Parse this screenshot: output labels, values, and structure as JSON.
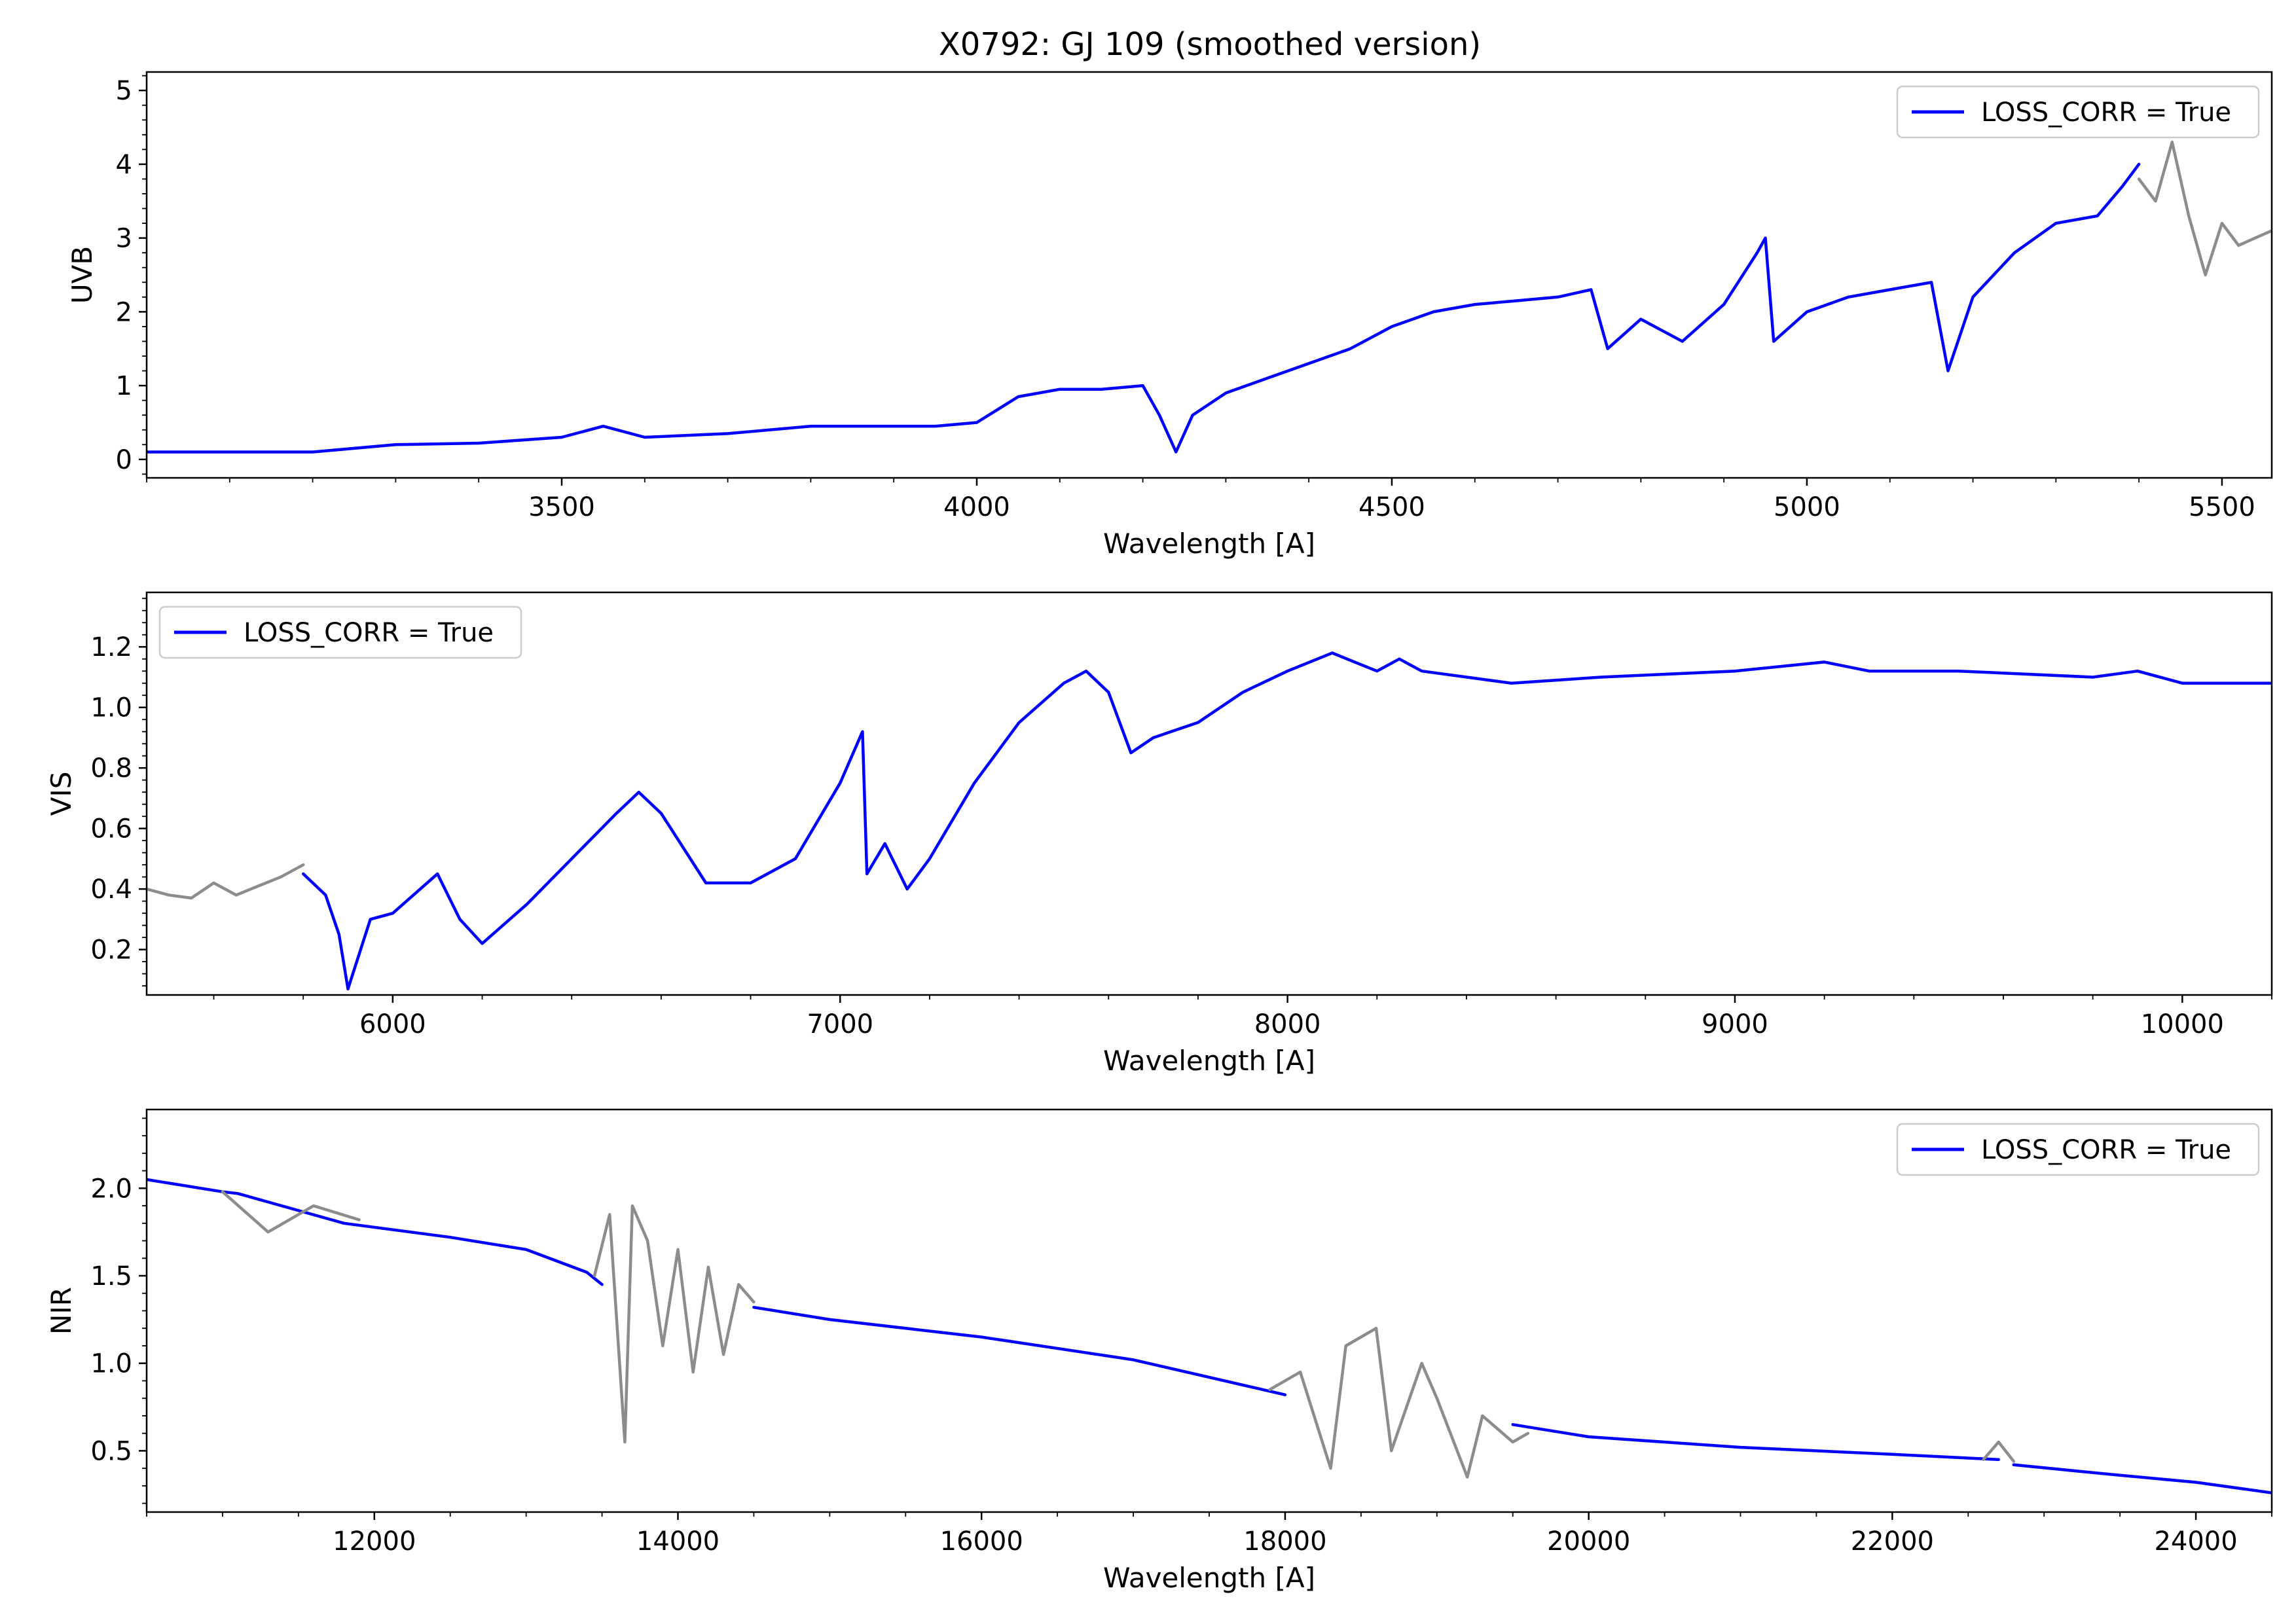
{
  "figure": {
    "title": "X0792: GJ 109 (smoothed version)"
  },
  "colors": {
    "main": "#0000ff",
    "masked": "#8c8c8c",
    "axis": "#000000",
    "legend_border": "#cccccc"
  },
  "chart_data": [
    {
      "type": "line",
      "xlabel": "Wavelength [A]",
      "ylabel": "UVB",
      "xlim": [
        3000,
        5560
      ],
      "ylim": [
        -0.25,
        5.25
      ],
      "xticks": [
        3500,
        4000,
        4500,
        5000,
        5500
      ],
      "xtick_labels": [
        "3500",
        "4000",
        "4500",
        "5000",
        "5500"
      ],
      "yticks": [
        0,
        1,
        2,
        3,
        4,
        5
      ],
      "ytick_labels": [
        "0",
        "1",
        "2",
        "3",
        "4",
        "5"
      ],
      "legend": {
        "label": "LOSS_CORR = True",
        "placement": "upper right"
      },
      "series": [
        {
          "name": "LOSS_CORR = True",
          "color": "#0000ff",
          "x": [
            3000,
            3100,
            3200,
            3300,
            3400,
            3500,
            3550,
            3600,
            3700,
            3800,
            3900,
            3950,
            4000,
            4050,
            4100,
            4150,
            4200,
            4220,
            4240,
            4260,
            4300,
            4350,
            4400,
            4450,
            4500,
            4550,
            4600,
            4650,
            4700,
            4740,
            4760,
            4800,
            4850,
            4900,
            4940,
            4950,
            4960,
            5000,
            5050,
            5100,
            5150,
            5170,
            5200,
            5250,
            5300,
            5350,
            5380,
            5400
          ],
          "y": [
            0.1,
            0.1,
            0.1,
            0.2,
            0.22,
            0.3,
            0.45,
            0.3,
            0.35,
            0.45,
            0.45,
            0.45,
            0.5,
            0.85,
            0.95,
            0.95,
            1.0,
            0.6,
            0.1,
            0.6,
            0.9,
            1.1,
            1.3,
            1.5,
            1.8,
            2.0,
            2.1,
            2.15,
            2.2,
            2.3,
            1.5,
            1.9,
            1.6,
            2.1,
            2.8,
            3.0,
            1.6,
            2.0,
            2.2,
            2.3,
            2.4,
            1.2,
            2.2,
            2.8,
            3.2,
            3.3,
            3.7,
            4.0
          ]
        },
        {
          "name": "",
          "color": "#8c8c8c",
          "x": [
            5400,
            5420,
            5440,
            5460,
            5480,
            5500,
            5520,
            5540,
            5560
          ],
          "y": [
            3.8,
            3.5,
            4.3,
            3.3,
            2.5,
            3.2,
            2.9,
            3.0,
            3.1
          ]
        }
      ]
    },
    {
      "type": "line",
      "xlabel": "Wavelength [A]",
      "ylabel": "VIS",
      "xlim": [
        5450,
        10200
      ],
      "ylim": [
        0.05,
        1.38
      ],
      "xticks": [
        6000,
        7000,
        8000,
        9000,
        10000
      ],
      "xtick_labels": [
        "6000",
        "7000",
        "8000",
        "9000",
        "10000"
      ],
      "yticks": [
        0.2,
        0.4,
        0.6,
        0.8,
        1.0,
        1.2
      ],
      "ytick_labels": [
        "0.2",
        "0.4",
        "0.6",
        "0.8",
        "1.0",
        "1.2"
      ],
      "legend": {
        "label": "LOSS_CORR = True",
        "placement": "upper left"
      },
      "series": [
        {
          "name": "",
          "color": "#8c8c8c",
          "x": [
            5450,
            5500,
            5550,
            5600,
            5650,
            5700,
            5750,
            5800
          ],
          "y": [
            0.4,
            0.38,
            0.37,
            0.42,
            0.38,
            0.41,
            0.44,
            0.48
          ]
        },
        {
          "name": "LOSS_CORR = True",
          "color": "#0000ff",
          "x": [
            5800,
            5850,
            5880,
            5900,
            5950,
            6000,
            6100,
            6150,
            6200,
            6300,
            6400,
            6500,
            6550,
            6600,
            6700,
            6800,
            6900,
            7000,
            7050,
            7060,
            7100,
            7150,
            7200,
            7300,
            7400,
            7500,
            7550,
            7600,
            7650,
            7700,
            7800,
            7900,
            8000,
            8100,
            8150,
            8200,
            8250,
            8300,
            8500,
            8700,
            9000,
            9200,
            9300,
            9500,
            9800,
            9900,
            10000,
            10200
          ],
          "y": [
            0.45,
            0.38,
            0.25,
            0.07,
            0.3,
            0.32,
            0.45,
            0.3,
            0.22,
            0.35,
            0.5,
            0.65,
            0.72,
            0.65,
            0.42,
            0.42,
            0.5,
            0.75,
            0.92,
            0.45,
            0.55,
            0.4,
            0.5,
            0.75,
            0.95,
            1.08,
            1.12,
            1.05,
            0.85,
            0.9,
            0.95,
            1.05,
            1.12,
            1.18,
            1.15,
            1.12,
            1.16,
            1.12,
            1.08,
            1.1,
            1.12,
            1.15,
            1.12,
            1.12,
            1.1,
            1.12,
            1.08,
            1.08
          ]
        }
      ]
    },
    {
      "type": "line",
      "xlabel": "Wavelength [A]",
      "ylabel": "NIR",
      "xlim": [
        10500,
        24500
      ],
      "ylim": [
        0.15,
        2.45
      ],
      "xticks": [
        12000,
        14000,
        16000,
        18000,
        20000,
        22000,
        24000
      ],
      "xtick_labels": [
        "12000",
        "14000",
        "16000",
        "18000",
        "20000",
        "22000",
        "24000"
      ],
      "yticks": [
        0.5,
        1.0,
        1.5,
        2.0
      ],
      "ytick_labels": [
        "0.5",
        "1.0",
        "1.5",
        "2.0"
      ],
      "legend": {
        "label": "LOSS_CORR = True",
        "placement": "upper right"
      },
      "series": [
        {
          "name": "LOSS_CORR = True",
          "color": "#0000ff",
          "x": [
            10500,
            11000,
            11100,
            11800,
            12500,
            13000,
            13400,
            13500
          ],
          "y": [
            2.05,
            1.98,
            1.97,
            1.8,
            1.72,
            1.65,
            1.52,
            1.45
          ]
        },
        {
          "name": "",
          "color": "#8c8c8c",
          "x": [
            11000,
            11300,
            11600,
            11900
          ],
          "y": [
            1.98,
            1.75,
            1.9,
            1.82
          ]
        },
        {
          "name": "",
          "color": "#8c8c8c",
          "x": [
            13450,
            13550,
            13650,
            13700,
            13800,
            13900,
            14000,
            14100,
            14200,
            14300,
            14400,
            14500
          ],
          "y": [
            1.5,
            1.85,
            0.55,
            1.9,
            1.7,
            1.1,
            1.65,
            0.95,
            1.55,
            1.05,
            1.45,
            1.35
          ]
        },
        {
          "name": "LOSS_CORR = True",
          "color": "#0000ff",
          "x": [
            14500,
            15000,
            16000,
            17000,
            18000
          ],
          "y": [
            1.32,
            1.25,
            1.15,
            1.02,
            0.82
          ]
        },
        {
          "name": "",
          "color": "#8c8c8c",
          "x": [
            17900,
            18100,
            18300,
            18400,
            18600,
            18700,
            18900,
            19000,
            19200,
            19300,
            19500,
            19600
          ],
          "y": [
            0.85,
            0.95,
            0.4,
            1.1,
            1.2,
            0.5,
            1.0,
            0.8,
            0.35,
            0.7,
            0.55,
            0.6
          ]
        },
        {
          "name": "LOSS_CORR = True",
          "color": "#0000ff",
          "x": [
            19500,
            20000,
            21000,
            22000,
            22700
          ],
          "y": [
            0.65,
            0.58,
            0.52,
            0.48,
            0.45
          ]
        },
        {
          "name": "",
          "color": "#8c8c8c",
          "x": [
            22600,
            22700,
            22800
          ],
          "y": [
            0.45,
            0.55,
            0.44
          ]
        },
        {
          "name": "LOSS_CORR = True",
          "color": "#0000ff",
          "x": [
            22800,
            23500,
            24000,
            24500
          ],
          "y": [
            0.42,
            0.36,
            0.32,
            0.26
          ]
        }
      ]
    }
  ]
}
